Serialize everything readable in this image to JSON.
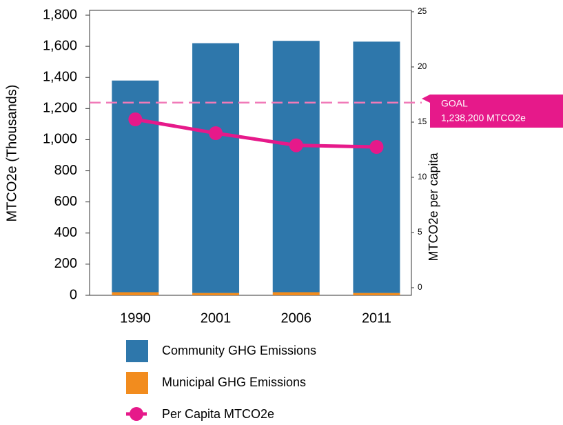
{
  "chart_data": {
    "type": "bar",
    "categories": [
      "1990",
      "2001",
      "2006",
      "2011"
    ],
    "series": [
      {
        "name": "Community GHG Emissions",
        "color": "#2e77ab",
        "values": [
          1360,
          1605,
          1615,
          1615
        ],
        "stack": true
      },
      {
        "name": "Municipal GHG Emissions",
        "color": "#f28c1e",
        "values": [
          20,
          15,
          20,
          15
        ],
        "stack": true
      },
      {
        "name": "Per Capita MTCO2e",
        "color": "#e6198a",
        "values": [
          15.25,
          14.0,
          12.9,
          12.75
        ],
        "axis": "y2",
        "type": "line"
      }
    ],
    "ylabel": "MTCO2e (Thousands)",
    "y2label": "MTCO2e per capita",
    "ylim": [
      0,
      1800
    ],
    "yticks": [
      0,
      200,
      400,
      600,
      800,
      {
        "value": 1000,
        "label": "1,000"
      },
      {
        "value": 1200,
        "label": "1,200"
      },
      {
        "value": 1400,
        "label": "1,400"
      },
      {
        "value": 1600,
        "label": "1,600"
      },
      {
        "value": 1800,
        "label": "1,800"
      }
    ],
    "y2lim": [
      0,
      25
    ],
    "y2ticks": [
      0,
      5,
      10,
      15,
      20,
      25
    ],
    "goal": {
      "value": 1238.2,
      "label": "GOAL",
      "value_label": "1,238,200 MTCO2e",
      "color": "#f07ab8"
    },
    "legend": "bottom"
  }
}
